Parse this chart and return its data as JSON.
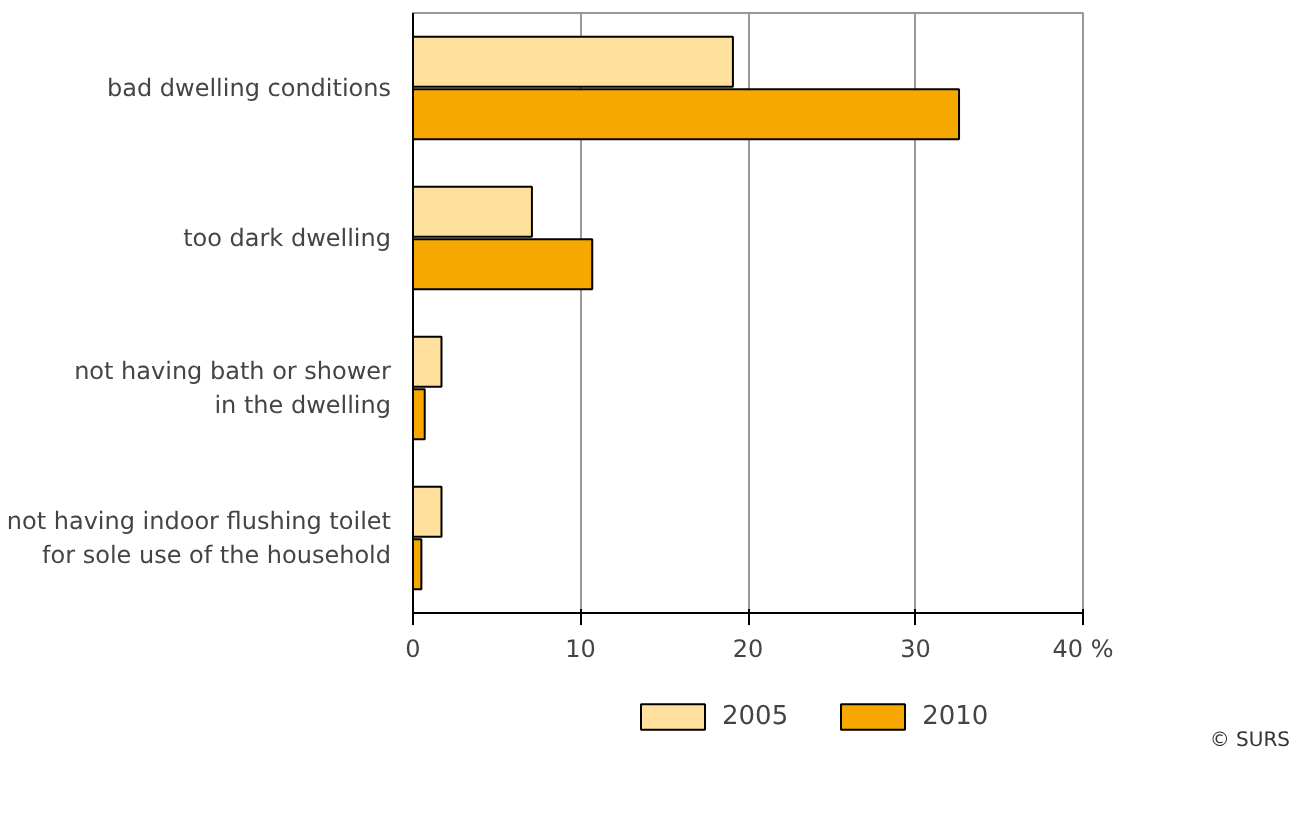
{
  "chart_data": {
    "type": "bar",
    "orientation": "horizontal",
    "categories": [
      "bad dwelling conditions",
      "too dark dwelling",
      "not having bath or shower\nin the dwelling",
      "not having indoor flushing toilet\nfor sole use of the household"
    ],
    "series": [
      {
        "name": "2005",
        "color": "#ffe09c",
        "values": [
          19.1,
          7.1,
          1.7,
          1.7
        ]
      },
      {
        "name": "2010",
        "color": "#f7a800",
        "values": [
          32.6,
          10.7,
          0.7,
          0.5
        ]
      }
    ],
    "xlim": [
      0,
      40
    ],
    "xticks": [
      0,
      10,
      20,
      30,
      {
        "value": 40,
        "label": "40 %"
      }
    ],
    "grid": "x",
    "legend": "bottom",
    "annotations": [
      "© SURS"
    ]
  }
}
